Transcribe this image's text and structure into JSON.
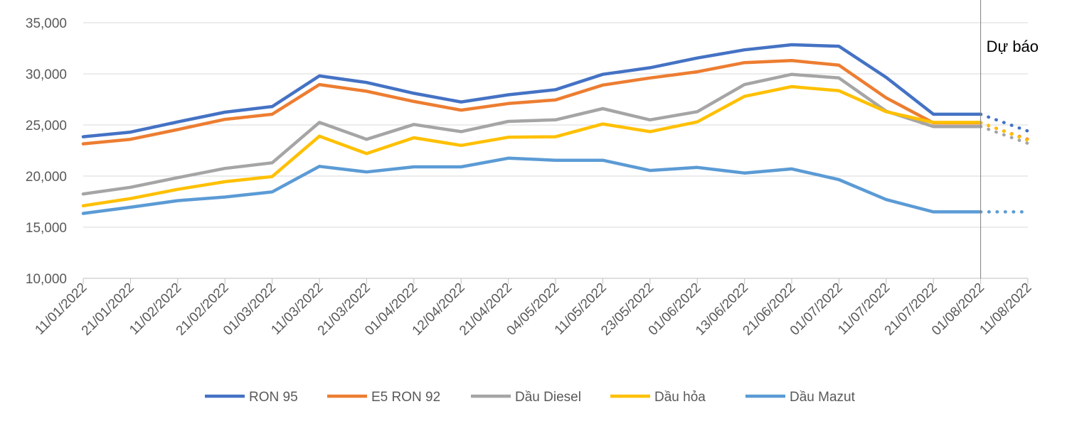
{
  "chart_data": {
    "type": "line",
    "title": "",
    "xlabel": "",
    "ylabel": "",
    "ylim": [
      10000,
      35000
    ],
    "yticks": [
      10000,
      15000,
      20000,
      25000,
      30000,
      35000
    ],
    "ytick_labels": [
      "10,000",
      "15,000",
      "20,000",
      "25,000",
      "30,000",
      "35,000"
    ],
    "grid": "horizontal",
    "legend_position": "bottom",
    "x": [
      "11/01/2022",
      "21/01/2022",
      "11/02/2022",
      "21/02/2022",
      "01/03/2022",
      "11/03/2022",
      "21/03/2022",
      "01/04/2022",
      "12/04/2022",
      "21/04/2022",
      "04/05/2022",
      "11/05/2022",
      "23/05/2022",
      "01/06/2022",
      "13/06/2022",
      "21/06/2022",
      "01/07/2022",
      "11/07/2022",
      "21/07/2022",
      "01/08/2022",
      "11/08/2022"
    ],
    "forecast_start": "01/08/2022",
    "forecast_label": "Dự báo",
    "series": [
      {
        "name": "RON 95",
        "color": "#4472C4",
        "values": [
          23850,
          24300,
          25300,
          26250,
          26800,
          29800,
          29150,
          28100,
          27250,
          27950,
          28450,
          29950,
          30600,
          31550,
          32350,
          32850,
          32700,
          29650,
          26050,
          26050,
          24400
        ]
      },
      {
        "name": "E5 RON 92",
        "color": "#ED7D31",
        "values": [
          23150,
          23600,
          24550,
          25550,
          26050,
          28950,
          28300,
          27300,
          26450,
          27100,
          27450,
          28900,
          29600,
          30200,
          31100,
          31300,
          30850,
          27650,
          25200,
          25200,
          23600
        ]
      },
      {
        "name": "Dầu Diesel",
        "color": "#A5A5A5",
        "values": [
          18250,
          18900,
          19850,
          20750,
          21300,
          25250,
          23600,
          25050,
          24350,
          25350,
          25500,
          26600,
          25500,
          26300,
          28950,
          29950,
          29600,
          26350,
          24850,
          24850,
          23200
        ]
      },
      {
        "name": "Dầu hỏa",
        "color": "#FFC000",
        "values": [
          17100,
          17800,
          18700,
          19450,
          19950,
          23900,
          22200,
          23750,
          23000,
          23800,
          23850,
          25100,
          24350,
          25300,
          27800,
          28750,
          28350,
          26300,
          25250,
          25250,
          23500
        ]
      },
      {
        "name": "Dầu Mazut",
        "color": "#5B9BD5",
        "values": [
          16350,
          16950,
          17600,
          17950,
          18450,
          20950,
          20400,
          20900,
          20900,
          21750,
          21550,
          21550,
          20550,
          20850,
          20300,
          20700,
          19650,
          17700,
          16500,
          16500,
          16500
        ]
      }
    ]
  }
}
